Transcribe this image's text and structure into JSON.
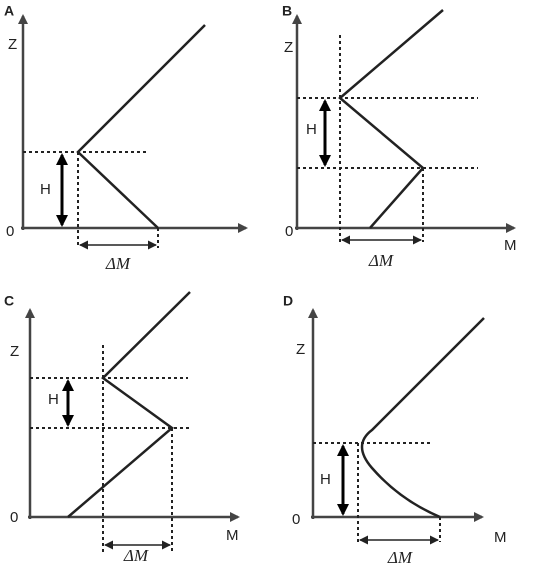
{
  "panels": [
    {
      "letter": "A",
      "z_label": "Z",
      "origin": "0",
      "h_label": "H",
      "dm_label": "ΔM"
    },
    {
      "letter": "B",
      "z_label": "Z",
      "origin": "0",
      "h_label": "H",
      "dm_label": "ΔM",
      "m_label": "M"
    },
    {
      "letter": "C",
      "z_label": "Z",
      "origin": "0",
      "h_label": "H",
      "dm_label": "ΔM",
      "m_label": "M"
    },
    {
      "letter": "D",
      "z_label": "Z",
      "origin": "0",
      "h_label": "H",
      "dm_label": "ΔM",
      "m_label": "M"
    }
  ]
}
